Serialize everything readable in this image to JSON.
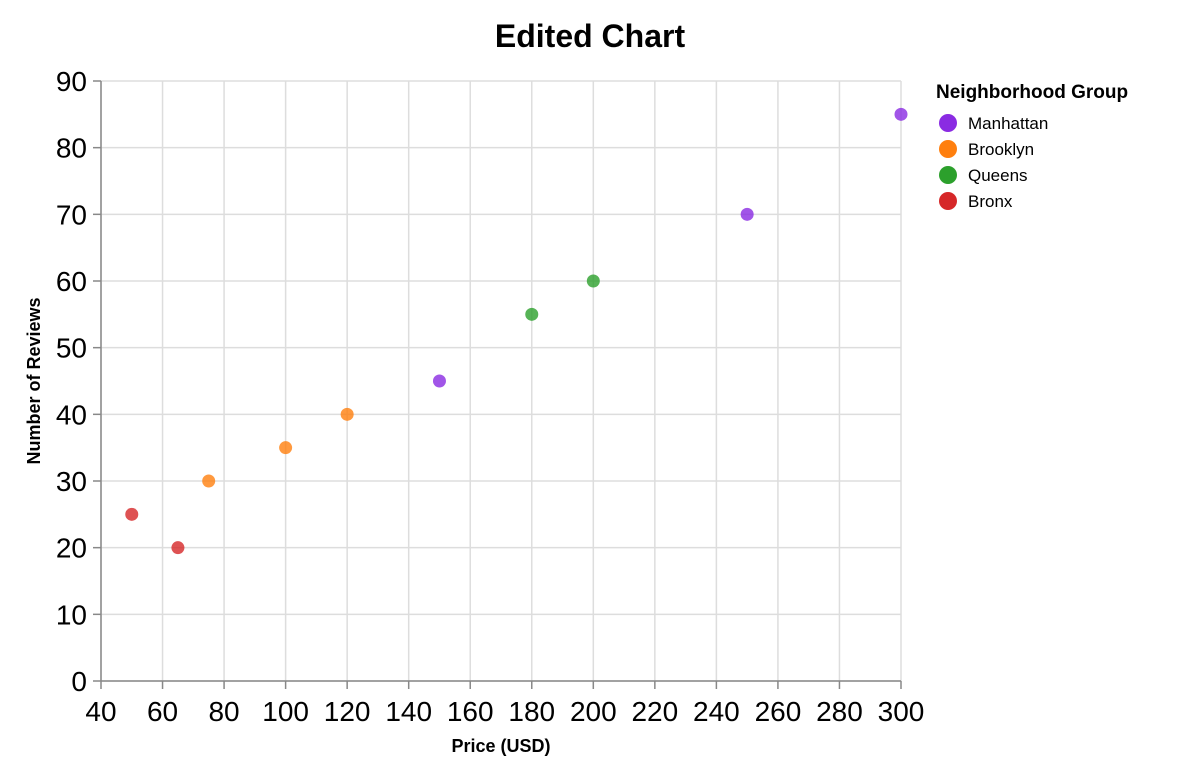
{
  "chart_data": {
    "type": "scatter",
    "title": "Edited Chart",
    "xlabel": "Price (USD)",
    "ylabel": "Number of Reviews",
    "xlim": [
      40,
      300
    ],
    "ylim": [
      0,
      90
    ],
    "x_ticks": [
      40,
      60,
      80,
      100,
      120,
      140,
      160,
      180,
      200,
      220,
      240,
      260,
      280,
      300
    ],
    "y_ticks": [
      0,
      10,
      20,
      30,
      40,
      50,
      60,
      70,
      80,
      90
    ],
    "grid": true,
    "legend": {
      "title": "Neighborhood Group",
      "placement": "right"
    },
    "series": [
      {
        "name": "Manhattan",
        "color": "#8a2be2",
        "points": [
          {
            "x": 150,
            "y": 45
          },
          {
            "x": 250,
            "y": 70
          },
          {
            "x": 300,
            "y": 85
          }
        ]
      },
      {
        "name": "Brooklyn",
        "color": "#ff7f0e",
        "points": [
          {
            "x": 75,
            "y": 30
          },
          {
            "x": 100,
            "y": 35
          },
          {
            "x": 120,
            "y": 40
          }
        ]
      },
      {
        "name": "Queens",
        "color": "#2ca02c",
        "points": [
          {
            "x": 180,
            "y": 55
          },
          {
            "x": 200,
            "y": 60
          }
        ]
      },
      {
        "name": "Bronx",
        "color": "#d62728",
        "points": [
          {
            "x": 50,
            "y": 25
          },
          {
            "x": 65,
            "y": 20
          }
        ]
      }
    ]
  }
}
